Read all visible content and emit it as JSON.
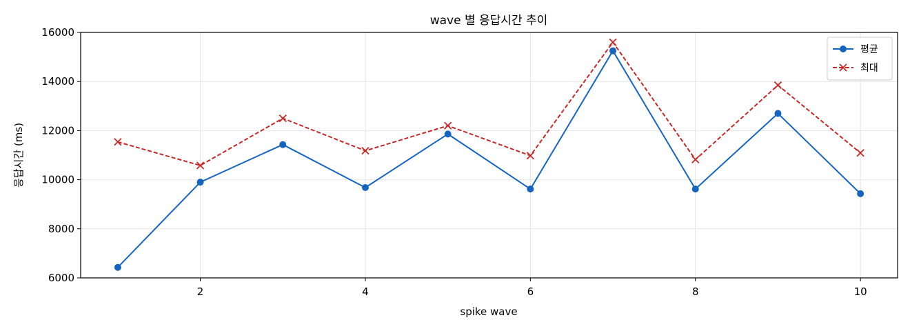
{
  "chart_data": {
    "type": "line",
    "title": "wave 별 응답시간 추이",
    "xlabel": "spike wave",
    "ylabel": "응답시간 (ms)",
    "x": [
      1,
      2,
      3,
      4,
      5,
      6,
      7,
      8,
      9,
      10
    ],
    "xticks": [
      "2",
      "4",
      "6",
      "8",
      "10"
    ],
    "yticks": [
      "6000",
      "8000",
      "10000",
      "12000",
      "14000",
      "16000"
    ],
    "xlim": [
      0.55,
      10.45
    ],
    "ylim": [
      6000,
      16000
    ],
    "grid": true,
    "legend_position": "top-right",
    "series": [
      {
        "name": "평균",
        "color": "#1565c0",
        "marker": "circle",
        "linestyle": "solid",
        "values": [
          6430,
          9900,
          11430,
          9680,
          11860,
          9620,
          15250,
          9620,
          12700,
          9430
        ]
      },
      {
        "name": "최대",
        "color": "#c62828",
        "marker": "x",
        "linestyle": "dashed",
        "values": [
          11540,
          10580,
          12500,
          11180,
          12200,
          10980,
          15600,
          10820,
          13850,
          11090
        ]
      }
    ]
  }
}
